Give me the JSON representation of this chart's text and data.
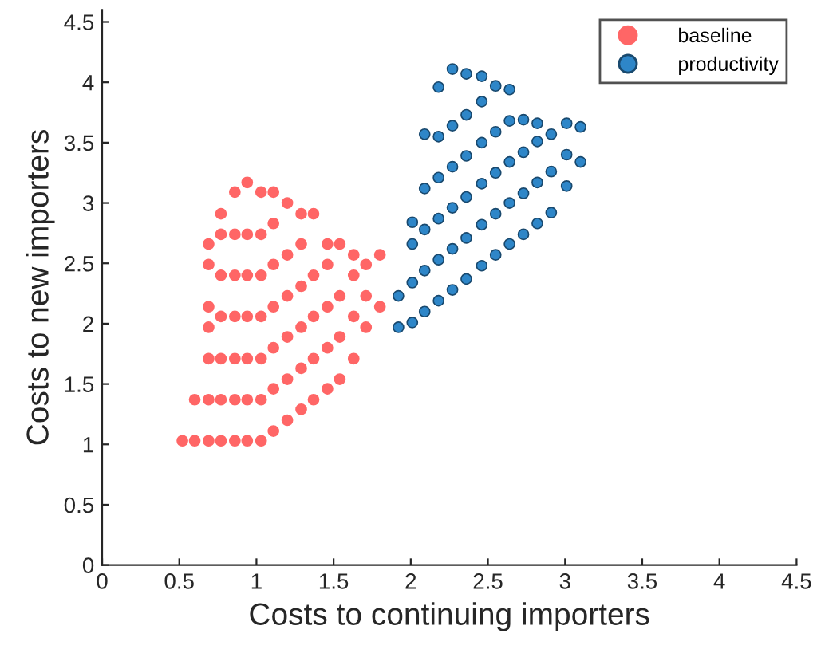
{
  "chart_data": {
    "type": "scatter",
    "xlabel": "Costs to continuing importers",
    "ylabel": "Costs to new importers",
    "xlim": [
      0,
      4.5
    ],
    "ylim": [
      0,
      4.6
    ],
    "xticks": [
      0,
      0.5,
      1,
      1.5,
      2,
      2.5,
      3,
      3.5,
      4,
      4.5
    ],
    "yticks": [
      0,
      0.5,
      1,
      1.5,
      2,
      2.5,
      3,
      3.5,
      4,
      4.5
    ],
    "grid": false,
    "legend": "top right",
    "marker": "circle",
    "series": [
      {
        "name": "baseline",
        "color": "#ff6666",
        "x": [
          0.52,
          0.6,
          0.6,
          0.69,
          0.69,
          0.69,
          0.69,
          0.69,
          0.69,
          0.69,
          0.77,
          0.77,
          0.77,
          0.77,
          0.77,
          0.77,
          0.77,
          0.86,
          0.86,
          0.86,
          0.86,
          0.86,
          0.86,
          0.86,
          0.94,
          0.94,
          0.94,
          0.94,
          0.94,
          0.94,
          0.94,
          1.03,
          1.03,
          1.03,
          1.03,
          1.03,
          1.03,
          1.03,
          1.11,
          1.11,
          1.11,
          1.11,
          1.11,
          1.11,
          1.11,
          1.2,
          1.2,
          1.2,
          1.2,
          1.2,
          1.2,
          1.29,
          1.29,
          1.29,
          1.29,
          1.29,
          1.29,
          1.37,
          1.37,
          1.37,
          1.37,
          1.37,
          1.46,
          1.46,
          1.46,
          1.46,
          1.46,
          1.54,
          1.54,
          1.54,
          1.54,
          1.63,
          1.63,
          1.63,
          1.63,
          1.71,
          1.71,
          1.71,
          1.8,
          1.8
        ],
        "values": [
          1.03,
          1.03,
          1.37,
          1.03,
          1.37,
          1.71,
          1.97,
          2.14,
          2.49,
          2.66,
          1.03,
          1.37,
          1.71,
          2.06,
          2.4,
          2.74,
          2.91,
          1.03,
          1.37,
          1.71,
          2.06,
          2.4,
          2.74,
          3.09,
          1.03,
          1.37,
          1.71,
          2.06,
          2.4,
          2.74,
          3.17,
          1.03,
          1.37,
          1.71,
          2.06,
          2.4,
          2.74,
          3.09,
          1.11,
          1.46,
          1.8,
          2.14,
          2.49,
          2.83,
          3.09,
          1.2,
          1.54,
          1.89,
          2.23,
          2.57,
          3.0,
          1.29,
          1.63,
          1.97,
          2.31,
          2.66,
          2.91,
          1.37,
          1.71,
          2.06,
          2.4,
          2.91,
          1.46,
          1.8,
          2.14,
          2.49,
          2.66,
          1.54,
          1.89,
          2.23,
          2.66,
          1.71,
          2.06,
          2.4,
          2.57,
          1.97,
          2.23,
          2.49,
          2.14,
          2.57
        ]
      },
      {
        "name": "productivity",
        "color": "#2e86c8",
        "x": [
          1.92,
          1.92,
          2.01,
          2.01,
          2.01,
          2.01,
          2.09,
          2.09,
          2.09,
          2.09,
          2.09,
          2.18,
          2.18,
          2.18,
          2.18,
          2.18,
          2.18,
          2.27,
          2.27,
          2.27,
          2.27,
          2.27,
          2.27,
          2.36,
          2.36,
          2.36,
          2.36,
          2.36,
          2.36,
          2.46,
          2.46,
          2.46,
          2.46,
          2.46,
          2.46,
          2.55,
          2.55,
          2.55,
          2.55,
          2.55,
          2.64,
          2.64,
          2.64,
          2.64,
          2.64,
          2.73,
          2.73,
          2.73,
          2.73,
          2.82,
          2.82,
          2.82,
          2.82,
          2.91,
          2.91,
          2.91,
          3.01,
          3.01,
          3.01,
          3.1,
          3.1
        ],
        "values": [
          1.97,
          2.23,
          2.01,
          2.34,
          2.66,
          2.84,
          2.1,
          2.44,
          2.78,
          3.12,
          3.57,
          2.19,
          2.53,
          2.87,
          3.21,
          3.55,
          3.96,
          2.28,
          2.62,
          2.96,
          3.3,
          3.64,
          4.11,
          2.37,
          2.71,
          3.05,
          3.39,
          3.73,
          4.07,
          2.48,
          2.82,
          3.16,
          3.5,
          3.84,
          4.05,
          2.57,
          2.91,
          3.25,
          3.59,
          3.97,
          2.66,
          3.0,
          3.34,
          3.68,
          3.94,
          2.74,
          3.08,
          3.42,
          3.69,
          2.83,
          3.17,
          3.51,
          3.66,
          2.92,
          3.26,
          3.57,
          3.14,
          3.4,
          3.66,
          3.34,
          3.63
        ]
      }
    ]
  }
}
